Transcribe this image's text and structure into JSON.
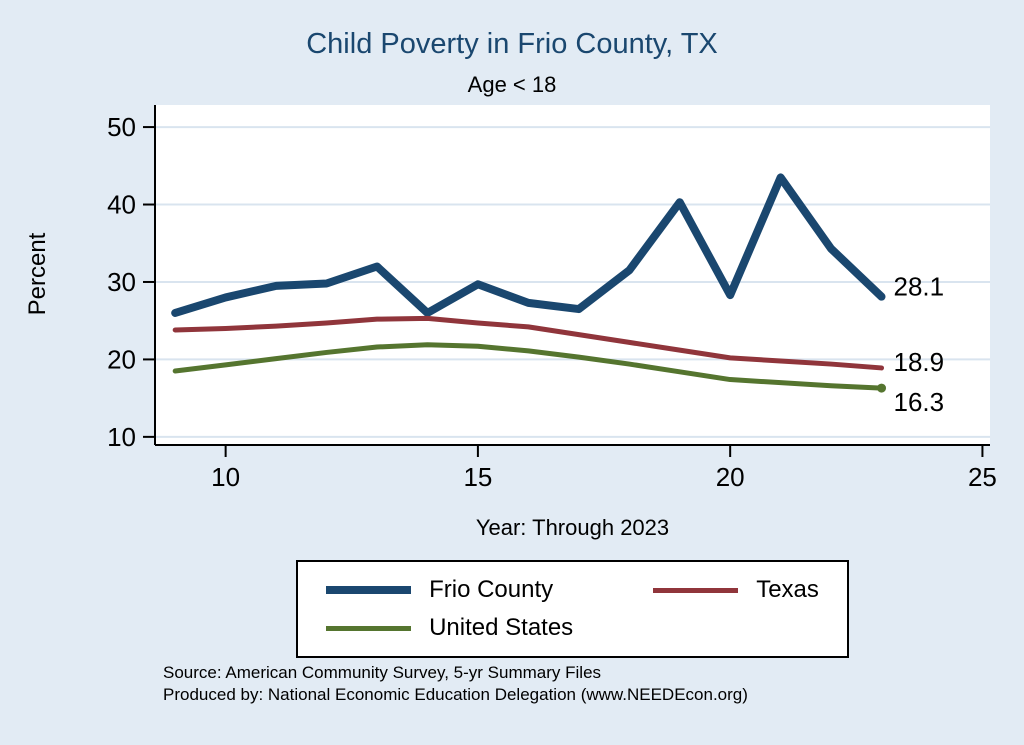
{
  "title": "Child Poverty in Frio County, TX",
  "subtitle": "Age < 18",
  "x_axis_label": "Year: Through 2023",
  "y_axis_label": "Percent",
  "source_line1": "Source: American Community Survey, 5-yr Summary Files",
  "source_line2": "Produced by: National Economic Education Delegation (www.NEEDEcon.org)",
  "colors": {
    "background": "#e2ebf4",
    "plot_background": "#ffffff",
    "grid": "#d9e4ef",
    "axis": "#000000",
    "title": "#1a476f",
    "frio_county": "#1a476f",
    "texas": "#90353b",
    "united_states": "#55752f"
  },
  "legend": {
    "position": "bottom",
    "items": [
      {
        "label": "Frio County",
        "color": "#1a476f",
        "thickness": 8
      },
      {
        "label": "Texas",
        "color": "#90353b",
        "thickness": 5
      },
      {
        "label": "United States",
        "color": "#55752f",
        "thickness": 5
      }
    ]
  },
  "chart_data": {
    "type": "line",
    "title": "Child Poverty in Frio County, TX",
    "subtitle": "Age < 18",
    "xlabel": "Year: Through 2023",
    "ylabel": "Percent",
    "x": [
      9,
      10,
      11,
      12,
      13,
      14,
      15,
      16,
      17,
      18,
      19,
      20,
      21,
      22,
      23
    ],
    "series": [
      {
        "name": "Frio County",
        "color": "#1a476f",
        "width": 8,
        "end_marker": false,
        "values": [
          26.0,
          28.0,
          29.5,
          29.8,
          32.0,
          26.0,
          29.7,
          27.3,
          26.5,
          31.5,
          40.3,
          28.3,
          43.5,
          34.3,
          28.1
        ]
      },
      {
        "name": "Texas",
        "color": "#90353b",
        "width": 5,
        "end_marker": false,
        "values": [
          23.8,
          24.0,
          24.3,
          24.7,
          25.2,
          25.3,
          24.7,
          24.2,
          23.2,
          22.2,
          21.2,
          20.2,
          19.8,
          19.4,
          18.9
        ]
      },
      {
        "name": "United States",
        "color": "#55752f",
        "width": 5,
        "end_marker": true,
        "values": [
          18.5,
          19.3,
          20.1,
          20.9,
          21.6,
          21.9,
          21.7,
          21.1,
          20.3,
          19.4,
          18.4,
          17.4,
          17.0,
          16.6,
          16.3
        ]
      }
    ],
    "x_ticks": [
      10,
      15,
      20,
      25
    ],
    "y_ticks": [
      10,
      20,
      30,
      40,
      50
    ],
    "x_range": [
      8.6,
      25.15
    ],
    "y_range": [
      8.95,
      52.85
    ],
    "grid": "horizontal",
    "legend_position": "bottom",
    "annotations": [
      {
        "text": "28.1",
        "x": 23,
        "y": 28.1,
        "dy": -10
      },
      {
        "text": "18.9",
        "x": 23,
        "y": 18.9,
        "dy": -6
      },
      {
        "text": "16.3",
        "x": 23,
        "y": 16.3,
        "dy": 14
      }
    ]
  }
}
